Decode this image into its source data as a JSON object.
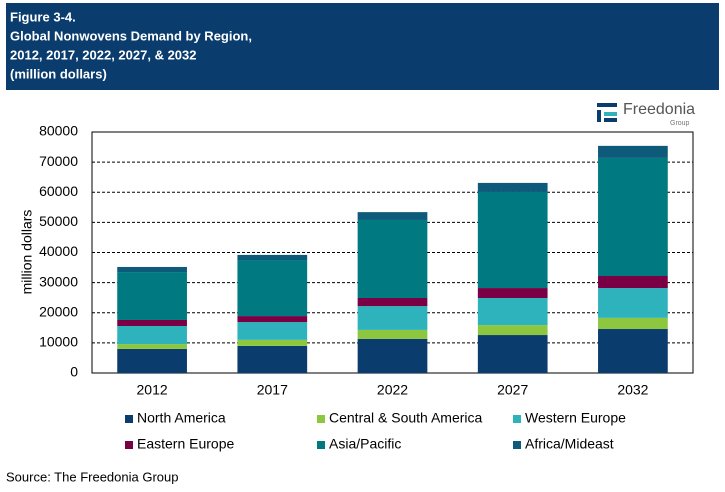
{
  "header": {
    "title": [
      "Figure 3-4.",
      "Global Nonwovens Demand by Region,",
      "2012, 2017, 2022, 2027, & 2032",
      "(million dollars)"
    ]
  },
  "logo": {
    "name": "Freedonia",
    "sub": "Group"
  },
  "source": "Source: The Freedonia Group",
  "chart_data": {
    "type": "stacked_bar",
    "y_label": "million dollars",
    "categories": [
      "2012",
      "2017",
      "2022",
      "2027",
      "2032"
    ],
    "series": [
      {
        "name": "North America",
        "color": "#0b3c6e",
        "values": [
          8.0,
          9.0,
          11.3,
          12.6,
          14.6
        ]
      },
      {
        "name": "Central & South America",
        "color": "#8dc63f",
        "values": [
          1.6,
          2.0,
          3.0,
          3.3,
          3.7
        ]
      },
      {
        "name": "Western Europe",
        "color": "#2eb3bd",
        "values": [
          6.0,
          5.9,
          7.9,
          9.0,
          9.9
        ]
      },
      {
        "name": "Eastern Europe",
        "color": "#7a0045",
        "values": [
          2.0,
          2.0,
          2.7,
          3.3,
          4.0
        ]
      },
      {
        "name": "Asia/Pacific",
        "color": "#007a80",
        "values": [
          15.9,
          18.6,
          25.9,
          31.9,
          39.2
        ]
      },
      {
        "name": "Africa/Mideast",
        "color": "#0d5a7a",
        "values": [
          1.7,
          1.7,
          2.6,
          3.0,
          4.0
        ]
      }
    ],
    "value_scale": 1000,
    "ylim": [
      0,
      80000
    ],
    "yticks": [
      0,
      10000,
      20000,
      30000,
      40000,
      50000,
      60000,
      70000,
      80000
    ],
    "grid": true
  }
}
